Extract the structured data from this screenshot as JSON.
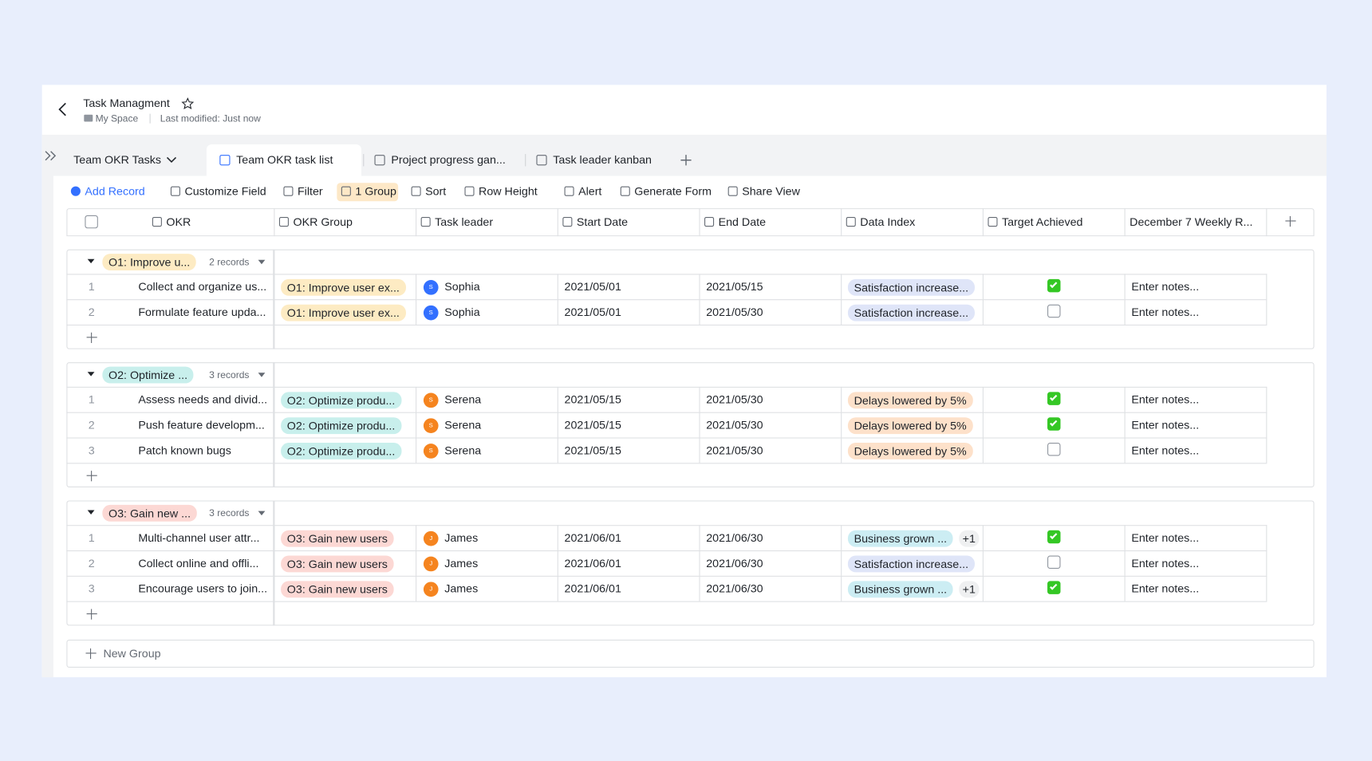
{
  "header": {
    "title": "Task Managment",
    "space": "My Space",
    "modified": "Last modified: Just now"
  },
  "tabs": {
    "workspace": "Team OKR Tasks",
    "views": [
      "Team OKR task list",
      "Project progress gan...",
      "Task leader kanban"
    ]
  },
  "toolbar": [
    "Add Record",
    "Customize Field",
    "Filter",
    "1 Group",
    "Sort",
    "Row Height",
    "Alert",
    "Generate Form",
    "Share View"
  ],
  "columns": [
    "OKR",
    "OKR Group",
    "Task leader",
    "Start Date",
    "End Date",
    "Data Index",
    "Target Achieved",
    "December 7 Weekly R..."
  ],
  "groups": [
    {
      "label": "O1: Improve u...",
      "count": "2 records",
      "color": "#fdebc3",
      "rows": [
        {
          "num": "1",
          "okr": "Collect and organize us...",
          "group": "O1: Improve user ex...",
          "initial": "S",
          "leader": "Sophia",
          "avatar": "#3370ff",
          "start": "2021/05/01",
          "end": "2021/05/15",
          "index": "Satisfaction increase...",
          "index_color": "#dfe5f8",
          "extra": null,
          "achieved": true,
          "notes": "Enter notes..."
        },
        {
          "num": "2",
          "okr": "Formulate feature upda...",
          "group": "O1: Improve user ex...",
          "initial": "S",
          "leader": "Sophia",
          "avatar": "#3370ff",
          "start": "2021/05/01",
          "end": "2021/05/30",
          "index": "Satisfaction increase...",
          "index_color": "#dfe5f8",
          "extra": null,
          "achieved": false,
          "notes": "Enter notes..."
        }
      ]
    },
    {
      "label": "O2: Optimize ...",
      "count": "3 records",
      "color": "#c8efec",
      "rows": [
        {
          "num": "1",
          "okr": "Assess needs and divid...",
          "group": "O2: Optimize produ...",
          "initial": "S",
          "leader": "Serena",
          "avatar": "#f5841f",
          "start": "2021/05/15",
          "end": "2021/05/30",
          "index": "Delays lowered by 5%",
          "index_color": "#fde1ca",
          "extra": null,
          "achieved": true,
          "notes": "Enter notes..."
        },
        {
          "num": "2",
          "okr": "Push feature developm...",
          "group": "O2: Optimize produ...",
          "initial": "S",
          "leader": "Serena",
          "avatar": "#f5841f",
          "start": "2021/05/15",
          "end": "2021/05/30",
          "index": "Delays lowered by 5%",
          "index_color": "#fde1ca",
          "extra": null,
          "achieved": true,
          "notes": "Enter notes..."
        },
        {
          "num": "3",
          "okr": "Patch known bugs",
          "group": "O2: Optimize produ...",
          "initial": "S",
          "leader": "Serena",
          "avatar": "#f5841f",
          "start": "2021/05/15",
          "end": "2021/05/30",
          "index": "Delays lowered by 5%",
          "index_color": "#fde1ca",
          "extra": null,
          "achieved": false,
          "notes": "Enter notes..."
        }
      ]
    },
    {
      "label": "O3: Gain new ...",
      "count": "3 records",
      "color": "#fcd8d4",
      "rows": [
        {
          "num": "1",
          "okr": "Multi-channel user attr...",
          "group": "O3: Gain new users",
          "initial": "J",
          "leader": "James",
          "avatar": "#f5841f",
          "start": "2021/06/01",
          "end": "2021/06/30",
          "index": "Business grown ...",
          "index_color": "#ccedf3",
          "extra": "+1",
          "achieved": true,
          "notes": "Enter notes..."
        },
        {
          "num": "2",
          "okr": "Collect online and offli...",
          "group": "O3: Gain new users",
          "initial": "J",
          "leader": "James",
          "avatar": "#f5841f",
          "start": "2021/06/01",
          "end": "2021/06/30",
          "index": "Satisfaction increase...",
          "index_color": "#dfe5f8",
          "extra": null,
          "achieved": false,
          "notes": "Enter notes..."
        },
        {
          "num": "3",
          "okr": "Encourage users to join...",
          "group": "O3: Gain new users",
          "initial": "J",
          "leader": "James",
          "avatar": "#f5841f",
          "start": "2021/06/01",
          "end": "2021/06/30",
          "index": "Business grown ...",
          "index_color": "#ccedf3",
          "extra": "+1",
          "achieved": true,
          "notes": "Enter notes..."
        }
      ]
    }
  ],
  "new_group": "New Group"
}
